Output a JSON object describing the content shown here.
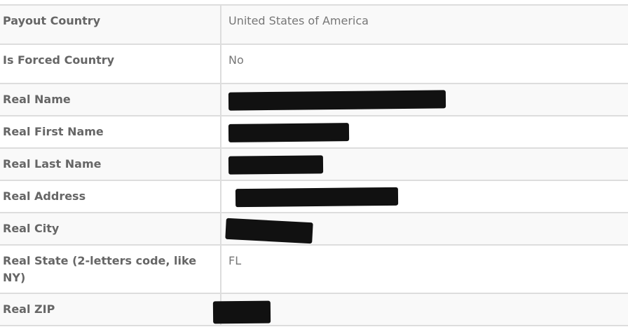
{
  "rows": [
    {
      "label": "Payout Country",
      "value": "United States of America",
      "redacted": false
    },
    {
      "label": "Is Forced Country",
      "value": "No",
      "redacted": false
    },
    {
      "label": "Real Name",
      "value": "",
      "redacted": true
    },
    {
      "label": "Real First Name",
      "value": "",
      "redacted": true
    },
    {
      "label": "Real Last Name",
      "value": "",
      "redacted": true
    },
    {
      "label": "Real Address",
      "value": "",
      "redacted": true
    },
    {
      "label": "Real City",
      "value": "",
      "redacted": true
    },
    {
      "label": "Real State (2-letters code, like NY)",
      "value": "FL",
      "redacted": false
    },
    {
      "label": "Real ZIP",
      "value": "",
      "redacted": true
    }
  ]
}
